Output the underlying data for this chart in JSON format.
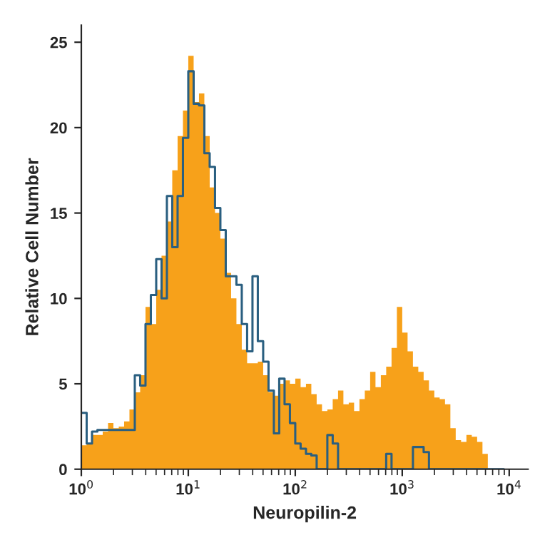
{
  "chart_data": {
    "type": "histogram",
    "xlabel": "Neuropilin-2",
    "ylabel": "Relative Cell Number",
    "log": "x",
    "bins": [
      1,
      1.122,
      1.259,
      1.413,
      1.585,
      1.778,
      1.995,
      2.239,
      2.512,
      2.818,
      3.162,
      3.548,
      3.981,
      4.467,
      5.012,
      5.623,
      6.31,
      7.079,
      7.943,
      8.913,
      10,
      11.22,
      12.59,
      14.13,
      15.85,
      17.78,
      19.95,
      22.39,
      25.12,
      28.18,
      31.62,
      35.48,
      39.81,
      44.67,
      50.12,
      56.23,
      63.1,
      70.79,
      79.43,
      89.13,
      100,
      112.2,
      125.9,
      141.3,
      158.5,
      177.8,
      199.5,
      223.9,
      251.2,
      281.8,
      316.2,
      354.8,
      398.1,
      446.7,
      501.2,
      562.3,
      631,
      707.9,
      794.3,
      891.3,
      1000,
      1122,
      1259,
      1413,
      1585,
      1778,
      1995,
      2239,
      2512,
      2818,
      3162,
      3548,
      3981,
      4467,
      5012,
      5623,
      6310,
      7079,
      7943,
      8913,
      10000
    ],
    "series": [
      {
        "color": "#f7a11a",
        "values": [
          1.4,
          1.5,
          2.0,
          2.0,
          2.2,
          2.7,
          2.4,
          2.5,
          2.8,
          3.5,
          4.5,
          5.5,
          9.5,
          8.5,
          10.5,
          12.5,
          14.5,
          17.5,
          19.5,
          21,
          24.2,
          21.5,
          22,
          19.5,
          16.5,
          15,
          13.5,
          11.5,
          10,
          8.5,
          7,
          6.2,
          6.2,
          6.3,
          5.5,
          4.5,
          4.3,
          5.0,
          5.2,
          5.0,
          5.3,
          4.8,
          5,
          4.4,
          3.8,
          3.4,
          3.5,
          4.1,
          4.6,
          3.8,
          3.9,
          3.4,
          4.1,
          4.6,
          5.7,
          4.8,
          5.5,
          6.0,
          7.1,
          9.5,
          8.0,
          6.9,
          6.0,
          5.7,
          5.2,
          4.6,
          4.2,
          4.1,
          3.8,
          2.4,
          1.7,
          1.6,
          2.0,
          1.9,
          1.6,
          0.9,
          0,
          0,
          0,
          0
        ]
      },
      {
        "type": "step",
        "color": "#2a5f80",
        "x": [
          1,
          1.122,
          1.259,
          1.413,
          1.585,
          1.778,
          1.995,
          2.239,
          2.512,
          2.818,
          3.162,
          3.548,
          3.981,
          4.467,
          5.012,
          5.623,
          6.31,
          7.079,
          7.943,
          8.913,
          10,
          11.22,
          12.59,
          14.13,
          15.85,
          17.78,
          19.95,
          22.39,
          25.12,
          28.18,
          31.62,
          35.48,
          39.81,
          44.67,
          50.12,
          56.23,
          63.1,
          70.79,
          79.43,
          89.13,
          100,
          112.2,
          125.9,
          141.3,
          158.5,
          177.8,
          199.5,
          223.9,
          251.2,
          281.8,
          316.2,
          354.8,
          398.1,
          446.7,
          501.2,
          562.3,
          631,
          707.9,
          794.3,
          891.3,
          1000,
          1122,
          1259,
          1413,
          1585,
          1778,
          1995,
          2239,
          2512,
          2818,
          3162,
          3548,
          3981,
          4467,
          5012,
          5623,
          6310,
          7079,
          7943,
          8913
        ],
        "values": [
          3.3,
          1.5,
          2.2,
          2.3,
          2.3,
          2.3,
          2.3,
          2.3,
          2.3,
          2.3,
          5.5,
          4.9,
          8.5,
          10.2,
          12.3,
          10,
          16,
          13,
          16,
          19.4,
          23.3,
          21.4,
          21.3,
          18.5,
          17.7,
          15.3,
          14,
          11.3,
          11.3,
          10.8,
          8.5,
          6.9,
          11.3,
          7.5,
          6.3,
          4.6,
          2.1,
          5.3,
          3.8,
          2.7,
          1.5,
          1.2,
          0.9,
          0.8,
          0,
          0,
          2.0,
          1.5,
          0,
          0,
          0,
          0,
          0,
          0,
          0,
          0,
          0,
          0.9,
          0,
          0,
          0,
          0,
          1.3,
          1.3,
          1.0,
          0,
          0,
          0,
          0,
          0,
          0,
          0,
          0,
          0,
          0,
          0,
          0,
          0,
          0,
          0
        ]
      }
    ],
    "xlim": [
      1,
      15000
    ],
    "ylim": [
      0,
      26
    ],
    "xticks": [
      {
        "value": 1,
        "label": "10$^{0}$"
      },
      {
        "value": 10,
        "label": "10$^{1}$"
      },
      {
        "value": 100,
        "label": "10$^{2}$"
      },
      {
        "value": 1000,
        "label": "10$^{3}$"
      },
      {
        "value": 10000,
        "label": "10$^{4}$"
      }
    ],
    "yticks": [
      0,
      5,
      10,
      15,
      20,
      25
    ],
    "grid": false,
    "legend": false
  }
}
